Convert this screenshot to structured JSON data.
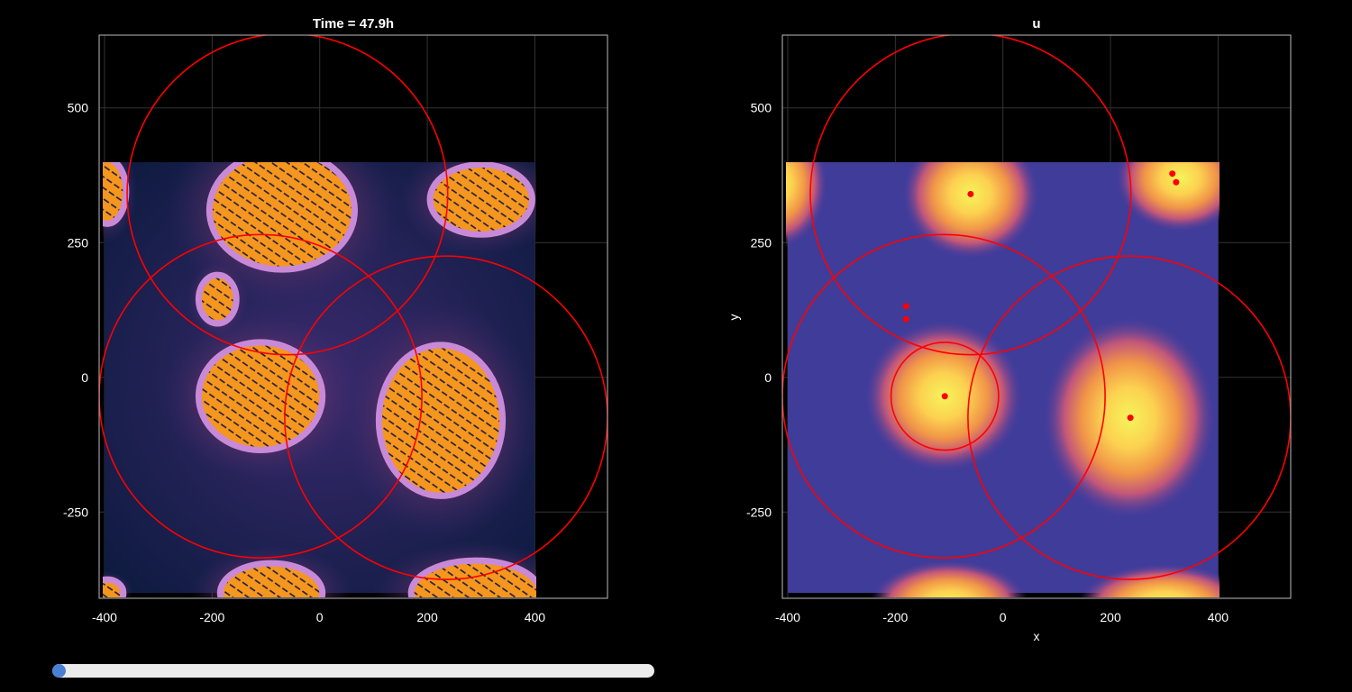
{
  "chart_data": [
    {
      "type": "heatmap",
      "title": "Time = 47.9h",
      "xlabel": "",
      "ylabel": "",
      "xlim": [
        -410,
        535
      ],
      "ylim": [
        -410,
        635
      ],
      "xticks": [
        -400,
        -200,
        0,
        200,
        400
      ],
      "yticks": [
        -250,
        0,
        250,
        500
      ],
      "grid": true,
      "field_domain": {
        "x": [
          -400,
          400
        ],
        "y": [
          -400,
          400
        ]
      },
      "colormap": "dark-blue-to-orange",
      "colonies": [
        {
          "x": -70,
          "y": 310,
          "rx": 135,
          "ry": 110
        },
        {
          "x": -110,
          "y": -35,
          "rx": 115,
          "ry": 100
        },
        {
          "x": 225,
          "y": -80,
          "rx": 115,
          "ry": 140
        },
        {
          "x": 300,
          "y": 330,
          "rx": 95,
          "ry": 65
        },
        {
          "x": -190,
          "y": 145,
          "rx": 35,
          "ry": 45
        },
        {
          "x": -395,
          "y": 345,
          "rx": 35,
          "ry": 60
        },
        {
          "x": -90,
          "y": -400,
          "rx": 95,
          "ry": 55
        },
        {
          "x": 290,
          "y": -400,
          "rx": 120,
          "ry": 60
        },
        {
          "x": -395,
          "y": -400,
          "rx": 30,
          "ry": 25
        }
      ],
      "circles": [
        {
          "cx": -60,
          "cy": 340,
          "r": 298
        },
        {
          "cx": -110,
          "cy": -35,
          "r": 300
        },
        {
          "cx": 235,
          "cy": -75,
          "r": 300
        }
      ]
    },
    {
      "type": "heatmap",
      "title": "u",
      "xlabel": "x",
      "ylabel": "y",
      "xlim": [
        -410,
        535
      ],
      "ylim": [
        -410,
        635
      ],
      "xticks": [
        -400,
        -200,
        0,
        200,
        400
      ],
      "yticks": [
        -250,
        0,
        250,
        500
      ],
      "grid": true,
      "field_domain": {
        "x": [
          -400,
          400
        ],
        "y": [
          -400,
          400
        ]
      },
      "colormap": "plasma",
      "peaks": [
        {
          "x": -60,
          "y": 340,
          "rx": 95,
          "ry": 90
        },
        {
          "x": -110,
          "y": -35,
          "rx": 110,
          "ry": 105
        },
        {
          "x": 235,
          "y": -75,
          "rx": 120,
          "ry": 140
        },
        {
          "x": 330,
          "y": 370,
          "rx": 90,
          "ry": 75
        },
        {
          "x": -420,
          "y": 360,
          "rx": 70,
          "ry": 90
        },
        {
          "x": -100,
          "y": -420,
          "rx": 110,
          "ry": 60
        },
        {
          "x": 300,
          "y": -420,
          "rx": 120,
          "ry": 55
        }
      ],
      "points": [
        {
          "x": -60,
          "y": 340
        },
        {
          "x": 315,
          "y": 378
        },
        {
          "x": 322,
          "y": 362
        },
        {
          "x": -180,
          "y": 132
        },
        {
          "x": -180,
          "y": 108
        },
        {
          "x": -108,
          "y": -35
        },
        {
          "x": 237,
          "y": -75
        }
      ],
      "circles": [
        {
          "cx": -60,
          "cy": 340,
          "r": 298
        },
        {
          "cx": -110,
          "cy": -35,
          "r": 300
        },
        {
          "cx": 235,
          "cy": -75,
          "r": 300
        },
        {
          "cx": -108,
          "cy": -35,
          "r": 100
        }
      ]
    }
  ],
  "slider": {
    "value": 0.0,
    "min": 0,
    "max": 1
  },
  "colors": {
    "background": "#000000",
    "circle": "#ff0000",
    "grid": "#333333",
    "frame": "#bbbbbb",
    "slider_track": "#ececec",
    "slider_thumb": "#4a7fd6"
  }
}
